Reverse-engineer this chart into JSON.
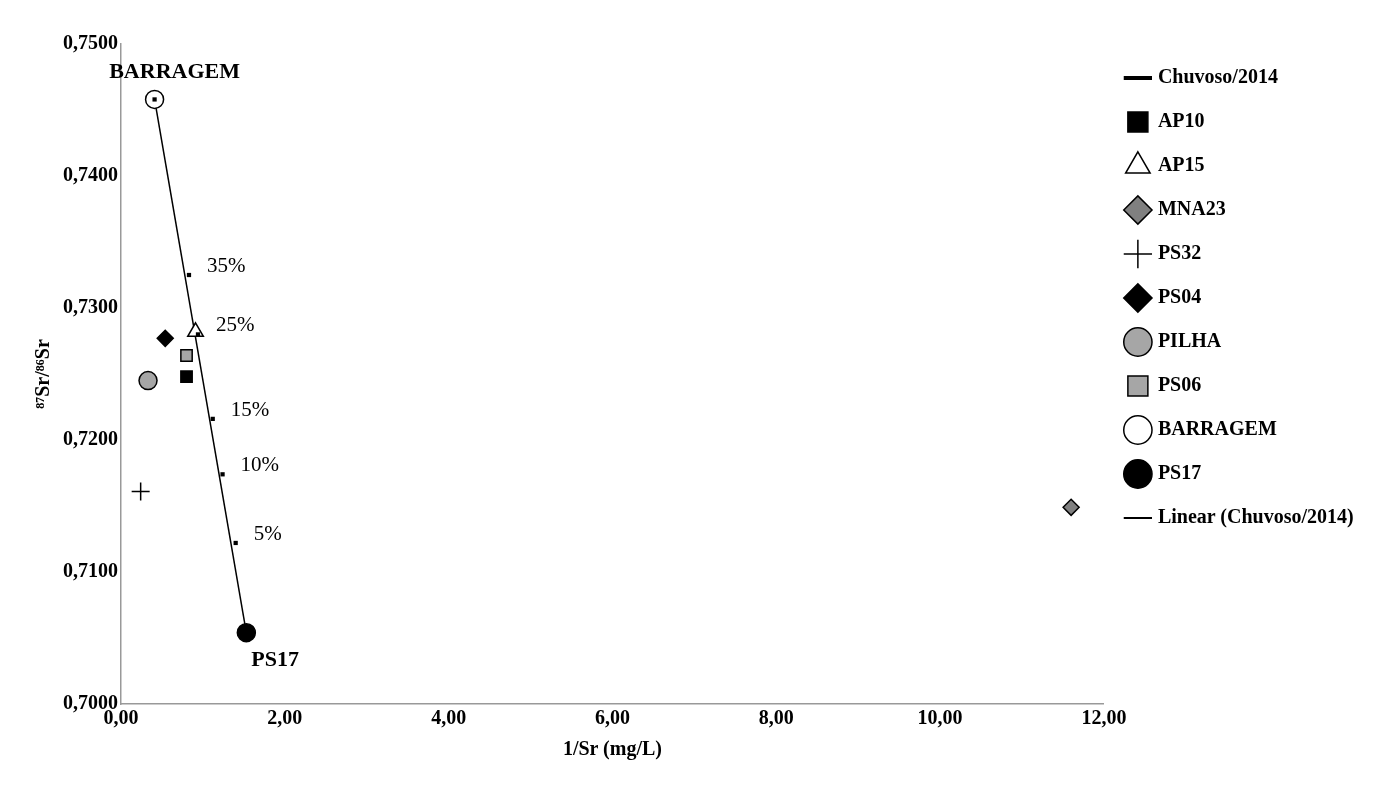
{
  "chart_data": {
    "type": "scatter",
    "xlabel": "1/Sr (mg/L)",
    "ylabel": "⁸⁷Sr/⁸⁶Sr",
    "xlim": [
      0,
      12
    ],
    "xticks": [
      {
        "value": 0,
        "label": "0,00"
      },
      {
        "value": 2,
        "label": "2,00"
      },
      {
        "value": 4,
        "label": "4,00"
      },
      {
        "value": 6,
        "label": "6,00"
      },
      {
        "value": 8,
        "label": "8,00"
      },
      {
        "value": 10,
        "label": "10,00"
      },
      {
        "value": 12,
        "label": "12,00"
      }
    ],
    "ylim": [
      0.7,
      0.75
    ],
    "yticks": [
      {
        "value": 0.7,
        "label": "0,7000"
      },
      {
        "value": 0.71,
        "label": "0,7100"
      },
      {
        "value": 0.72,
        "label": "0,7200"
      },
      {
        "value": 0.73,
        "label": "0,7300"
      },
      {
        "value": 0.74,
        "label": "0,7400"
      },
      {
        "value": 0.75,
        "label": "0,7500"
      }
    ],
    "grid": false,
    "legend": "right",
    "series": [
      {
        "name": "Chuvoso/2014",
        "color": "#000000",
        "marker": "square",
        "x": [
          0.41,
          0.83,
          0.94,
          1.12,
          1.24,
          1.4
        ],
        "values": [
          0.7458,
          0.7325,
          0.728,
          0.7216,
          0.7174,
          0.7122
        ]
      },
      {
        "name": "AP10",
        "color": "#000000",
        "marker": "square",
        "x": [
          0.8
        ],
        "values": [
          0.7248
        ]
      },
      {
        "name": "AP15",
        "color": "#ffffff",
        "marker": "triangle",
        "x": [
          0.91
        ],
        "values": [
          0.7282
        ]
      },
      {
        "name": "MNA23",
        "color": "#808080",
        "marker": "diamond",
        "x": [
          11.6
        ],
        "values": [
          0.7149
        ]
      },
      {
        "name": "PS32",
        "color": "#000000",
        "marker": "cross",
        "x": [
          0.24
        ],
        "values": [
          0.7161
        ]
      },
      {
        "name": "PS04",
        "color": "#000000",
        "marker": "diamond",
        "x": [
          0.54
        ],
        "values": [
          0.7277
        ]
      },
      {
        "name": "PILHA",
        "color": "#a6a6a6",
        "marker": "circle",
        "x": [
          0.33
        ],
        "values": [
          0.7245
        ]
      },
      {
        "name": "PS06",
        "color": "#a6a6a6",
        "marker": "square",
        "x": [
          0.8
        ],
        "values": [
          0.7264
        ]
      },
      {
        "name": "BARRAGEM",
        "color": "#ffffff",
        "marker": "circle",
        "x": [
          0.41
        ],
        "values": [
          0.7458
        ]
      },
      {
        "name": "PS17",
        "color": "#000000",
        "marker": "circle",
        "x": [
          1.53
        ],
        "values": [
          0.7054
        ]
      },
      {
        "name": "Linear (Chuvoso/2014)",
        "type": "line",
        "color": "#000000",
        "marker": "none",
        "x": [
          0.41,
          1.53
        ],
        "values": [
          0.7458,
          0.7054
        ]
      }
    ],
    "annotations": [
      {
        "text": "BARRAGEM",
        "x": 0.41,
        "y": 0.7458
      },
      {
        "text": "PS17",
        "x": 1.53,
        "y": 0.7054
      },
      {
        "text": "35%",
        "x": 0.83,
        "y": 0.7325
      },
      {
        "text": "25%",
        "x": 0.94,
        "y": 0.728
      },
      {
        "text": "15%",
        "x": 1.12,
        "y": 0.7216
      },
      {
        "text": "10%",
        "x": 1.24,
        "y": 0.7174
      },
      {
        "text": "5%",
        "x": 1.4,
        "y": 0.7122
      }
    ]
  }
}
